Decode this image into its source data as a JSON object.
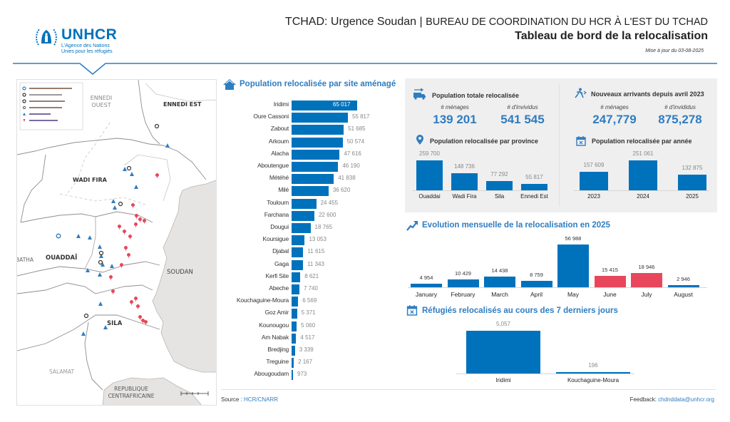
{
  "header": {
    "logo_word": "UNHCR",
    "logo_sub1": "L'Agence des Nations",
    "logo_sub2": "Unies pour les réfugiés",
    "line1_main": "TCHAD: Urgence Soudan | ",
    "line1_small": "BUREAU DE COORDINATION DU HCR À L'EST DU TCHAD",
    "title": "Tableau de bord de la relocalisation",
    "updated": "Mise à jour du 03-08-2025"
  },
  "map": {
    "labels": {
      "ennedi_ouest_1": "ENNEDI",
      "ennedi_ouest_2": "OUEST",
      "ennedi_est": "ENNEDI EST",
      "wadi_fira": "WADI FIRA",
      "ouaddai": "OUADDAÏ",
      "batha": "BATHA",
      "soudan": "SOUDAN",
      "sila": "SILA",
      "salamat": "SALAMAT",
      "rca_1": "REPUBLIQUE",
      "rca_2": "CENTRAFRICAINE"
    },
    "colors": {
      "camp": "#2f7dc1",
      "entry_point": "#e8475b",
      "sudan": "#e6e4e2"
    }
  },
  "sites": {
    "title": "Population relocalisée par site aménagé",
    "icon": "home-icon"
  },
  "kpi": {
    "total": {
      "title": "Population totale relocalisée",
      "icon": "truck-icon",
      "households_label": "# ménages",
      "households": "139 201",
      "individuals_label": "# d'invividus",
      "individuals": "541 545"
    },
    "arrivals": {
      "title": "Nouveaux arrivants depuis avril 2023",
      "icon": "running-person-icon",
      "households_label": "# ménages",
      "households": "247,779",
      "individuals_label": "# d'invididus",
      "individuals": "875,278"
    },
    "province_title": "Population relocalisée par province",
    "province_icon": "map-pin-icon",
    "year_title": "Population relocalisée par année",
    "year_icon": "calendar-icon"
  },
  "monthly": {
    "title": "Evolution mensuelle de la relocalisation en 2025",
    "icon": "trend-up-icon"
  },
  "week": {
    "title": "Réfugiés relocalisés au cours des 7 derniers jours",
    "icon": "calendar-icon"
  },
  "footer": {
    "source_label": "Source : ",
    "source_link": "HCR/CNARR",
    "feedback_label": "Feedback: ",
    "feedback_link": "chdnddata@unhcr.org"
  },
  "chart_data": [
    {
      "type": "bar",
      "orientation": "horizontal",
      "title": "Population relocalisée par site aménagé",
      "categories": [
        "Iridimi",
        "Oure Cassoni",
        "Zabout",
        "Arkoum",
        "Alacha",
        "Aboutengue",
        "Météhé",
        "Milé",
        "Touloum",
        "Farchana",
        "Dougui",
        "Koursigue",
        "Djabal",
        "Gaga",
        "Kerfi Site",
        "Abeche",
        "Kouchaguine-Moura",
        "Goz Amir",
        "Kounougou",
        "Am Nabak",
        "Bredjing",
        "Treguine",
        "Abougoudam"
      ],
      "values": [
        65017,
        55817,
        51685,
        50574,
        47616,
        46190,
        41838,
        36620,
        24455,
        22600,
        18765,
        13053,
        11615,
        11343,
        8621,
        7740,
        6569,
        5371,
        5060,
        4517,
        3339,
        2167,
        973
      ],
      "labels": [
        "65 017",
        "55 817",
        "51 685",
        "50 574",
        "47 616",
        "46 190",
        "41 838",
        "36 620",
        "24 455",
        "22 600",
        "18 765",
        "13 053",
        "11 615",
        "11 343",
        "8 621",
        "7 740",
        "6 569",
        "5 371",
        "5 060",
        "4 517",
        "3 339",
        "2 167",
        "973"
      ],
      "color": "#0072bc"
    },
    {
      "type": "bar",
      "title": "Population relocalisée par province",
      "categories": [
        "Ouaddai",
        "Wadi Fira",
        "Sila",
        "Ennedi Est"
      ],
      "values": [
        259700,
        148736,
        77292,
        55817
      ],
      "labels": [
        "259 700",
        "148 736",
        "77 292",
        "55 817"
      ],
      "color": "#0072bc"
    },
    {
      "type": "bar",
      "title": "Population relocalisée par année",
      "categories": [
        "2023",
        "2024",
        "2025"
      ],
      "values": [
        157609,
        251061,
        132875
      ],
      "labels": [
        "157 609",
        "251 061",
        "132 875"
      ],
      "color": "#0072bc"
    },
    {
      "type": "bar",
      "title": "Evolution mensuelle de la relocalisation en 2025",
      "categories": [
        "January",
        "February",
        "March",
        "April",
        "May",
        "June",
        "July",
        "August"
      ],
      "values": [
        4954,
        10429,
        14438,
        8759,
        56988,
        15415,
        18946,
        2946
      ],
      "labels": [
        "4 954",
        "10 429",
        "14 438",
        "8 759",
        "56 988",
        "15 415",
        "18 946",
        "2 946"
      ],
      "colors": [
        "#0072bc",
        "#0072bc",
        "#0072bc",
        "#0072bc",
        "#0072bc",
        "#e8475b",
        "#e8475b",
        "#0072bc"
      ]
    },
    {
      "type": "bar",
      "title": "Réfugiés relocalisés au cours des 7 derniers jours",
      "categories": [
        "Iridimi",
        "Kouchaguine-Moura"
      ],
      "values": [
        5057,
        196
      ],
      "labels": [
        "5,057",
        "196"
      ],
      "color": "#0072bc"
    }
  ]
}
